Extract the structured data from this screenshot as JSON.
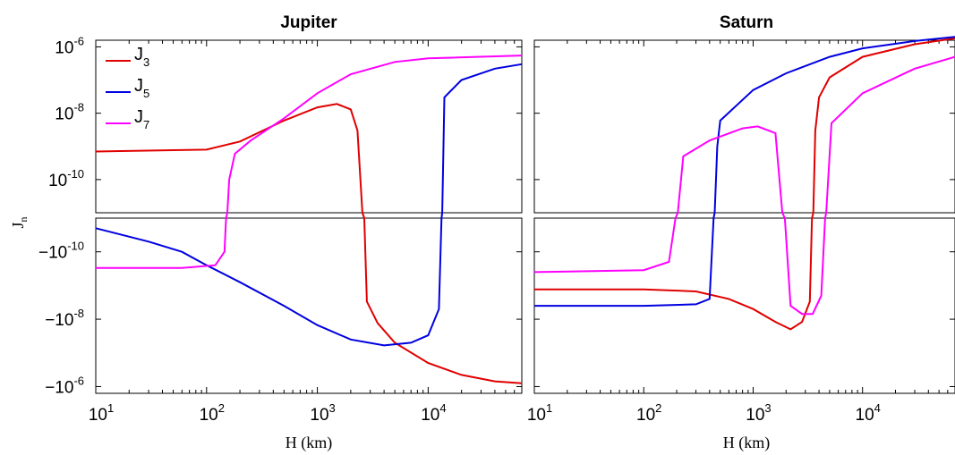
{
  "chart_data": [
    {
      "type": "line",
      "title": "Jupiter",
      "xlabel": "H (km)",
      "ylabel": "J_n",
      "xscale": "log",
      "xlim": [
        10,
        70000
      ],
      "yscale": "symlog",
      "x_ticks": [
        "10^1",
        "10^2",
        "10^3",
        "10^4"
      ],
      "y_ticks_top": [
        "10^-6",
        "10^-8",
        "10^-10"
      ],
      "y_ticks_bottom": [
        "-10^-10",
        "-10^-8",
        "-10^-6"
      ],
      "legend": {
        "placement": "top-left",
        "entries": [
          "J_3",
          "J_5",
          "J_7"
        ]
      },
      "series": [
        {
          "name": "J_3",
          "color": "#e00000",
          "points": [
            [
              10,
              7e-10
            ],
            [
              100,
              8e-10
            ],
            [
              200,
              1.4e-09
            ],
            [
              500,
              6e-09
            ],
            [
              1000,
              1.5e-08
            ],
            [
              1500,
              1.9e-08
            ],
            [
              2000,
              1.3e-08
            ],
            [
              2300,
              3e-09
            ],
            [
              2550,
              1e-11
            ],
            [
              2600,
              0
            ],
            [
              2650,
              -1e-11
            ],
            [
              2800,
              -3e-09
            ],
            [
              3500,
              -1.3e-08
            ],
            [
              5000,
              -5e-08
            ],
            [
              10000,
              -2e-07
            ],
            [
              20000,
              -4.5e-07
            ],
            [
              40000,
              -7e-07
            ],
            [
              70000,
              -8e-07
            ]
          ]
        },
        {
          "name": "J_5",
          "color": "#0000e0",
          "points": [
            [
              10,
              -2e-11
            ],
            [
              30,
              -5e-11
            ],
            [
              60,
              -1e-10
            ],
            [
              100,
              -2.5e-10
            ],
            [
              200,
              -8e-10
            ],
            [
              500,
              -4e-09
            ],
            [
              1000,
              -1.5e-08
            ],
            [
              2000,
              -4e-08
            ],
            [
              4000,
              -6e-08
            ],
            [
              7000,
              -5e-08
            ],
            [
              10000,
              -3e-08
            ],
            [
              12500,
              -5e-09
            ],
            [
              13200,
              -1e-11
            ],
            [
              13300,
              0
            ],
            [
              13400,
              1e-11
            ],
            [
              14000,
              3e-08
            ],
            [
              20000,
              1e-07
            ],
            [
              40000,
              2.2e-07
            ],
            [
              70000,
              3e-07
            ]
          ]
        },
        {
          "name": "J_7",
          "color": "#ff00ff",
          "points": [
            [
              10,
              -3e-10
            ],
            [
              60,
              -3e-10
            ],
            [
              120,
              -2.5e-10
            ],
            [
              145,
              -1e-10
            ],
            [
              150,
              -1e-11
            ],
            [
              152,
              0
            ],
            [
              154,
              1e-11
            ],
            [
              160,
              1e-10
            ],
            [
              180,
              6e-10
            ],
            [
              250,
              1.5e-09
            ],
            [
              500,
              7e-09
            ],
            [
              1000,
              4e-08
            ],
            [
              2000,
              1.5e-07
            ],
            [
              5000,
              3.5e-07
            ],
            [
              10000,
              4.5e-07
            ],
            [
              70000,
              5.5e-07
            ]
          ]
        }
      ]
    },
    {
      "type": "line",
      "title": "Saturn",
      "xlabel": "H (km)",
      "xscale": "log",
      "xlim": [
        10,
        70000
      ],
      "yscale": "symlog",
      "x_ticks": [
        "10^1",
        "10^2",
        "10^3",
        "10^4"
      ],
      "series": [
        {
          "name": "J_3",
          "color": "#e00000",
          "points": [
            [
              10,
              -1.3e-09
            ],
            [
              100,
              -1.3e-09
            ],
            [
              300,
              -1.5e-09
            ],
            [
              600,
              -2.5e-09
            ],
            [
              1000,
              -5e-09
            ],
            [
              1600,
              -1.2e-08
            ],
            [
              2200,
              -2e-08
            ],
            [
              2800,
              -1.2e-08
            ],
            [
              3300,
              -3e-09
            ],
            [
              3450,
              -1e-11
            ],
            [
              3500,
              0
            ],
            [
              3550,
              1e-11
            ],
            [
              3700,
              3e-09
            ],
            [
              4000,
              3e-08
            ],
            [
              5000,
              1.2e-07
            ],
            [
              10000,
              5e-07
            ],
            [
              30000,
              1.2e-06
            ],
            [
              70000,
              1.8e-06
            ]
          ]
        },
        {
          "name": "J_5",
          "color": "#0000e0",
          "points": [
            [
              10,
              -4e-09
            ],
            [
              100,
              -4e-09
            ],
            [
              300,
              -3.6e-09
            ],
            [
              400,
              -2.5e-09
            ],
            [
              435,
              -1e-11
            ],
            [
              440,
              0
            ],
            [
              445,
              1e-11
            ],
            [
              470,
              1e-09
            ],
            [
              500,
              6e-09
            ],
            [
              1000,
              5e-08
            ],
            [
              2000,
              1.6e-07
            ],
            [
              5000,
              5e-07
            ],
            [
              10000,
              9e-07
            ],
            [
              30000,
              1.5e-06
            ],
            [
              70000,
              2e-06
            ]
          ]
        },
        {
          "name": "J_7",
          "color": "#ff00ff",
          "points": [
            [
              10,
              -4e-10
            ],
            [
              100,
              -3.5e-10
            ],
            [
              170,
              -2e-10
            ],
            [
              195,
              -1e-11
            ],
            [
              200,
              0
            ],
            [
              205,
              1e-11
            ],
            [
              230,
              5e-10
            ],
            [
              400,
              1.5e-09
            ],
            [
              800,
              3.5e-09
            ],
            [
              1100,
              4e-09
            ],
            [
              1600,
              2.5e-09
            ],
            [
              1850,
              1e-11
            ],
            [
              1900,
              0
            ],
            [
              1950,
              -1e-11
            ],
            [
              2200,
              -4e-09
            ],
            [
              2800,
              -7e-09
            ],
            [
              3500,
              -7e-09
            ],
            [
              4200,
              -2e-09
            ],
            [
              4550,
              -1e-11
            ],
            [
              4600,
              0
            ],
            [
              4650,
              1e-11
            ],
            [
              5200,
              5e-09
            ],
            [
              10000,
              4e-08
            ],
            [
              30000,
              2.2e-07
            ],
            [
              70000,
              5e-07
            ]
          ]
        }
      ]
    }
  ]
}
